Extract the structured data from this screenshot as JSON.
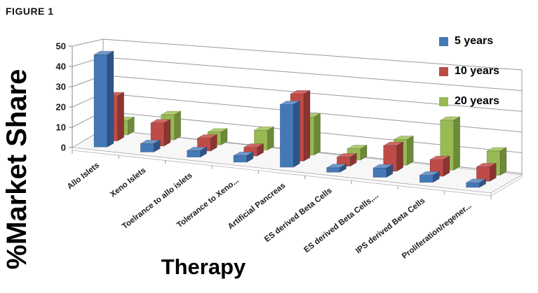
{
  "figure_label": "FIGURE 1",
  "y_axis_title": "%Market Share",
  "x_axis_title": "Therapy",
  "chart_data": {
    "type": "bar",
    "subtype": "3d-clustered-column",
    "title": "",
    "xlabel": "Therapy",
    "ylabel": "%Market Share",
    "ylim": [
      0,
      50
    ],
    "ytick_interval": 10,
    "yticks": [
      "0",
      "10",
      "20",
      "30",
      "40",
      "50"
    ],
    "grid": true,
    "legend_position": "top-right",
    "categories": [
      "Allo Islets",
      "Xeno Islets",
      "Toelrance to allo islets",
      "Tolerance to Xeno...",
      "Artificial Pancreas",
      "ES derived Beta Cells",
      "ES derived Beta Cells,...",
      "IPS derived Beta Cells",
      "Proliferation/regener..."
    ],
    "series": [
      {
        "name": "5 years",
        "color": "#4478B6",
        "side_color": "#2F5385",
        "top_color": "#6E97C9",
        "values": [
          45,
          4,
          3,
          3,
          28,
          2,
          4,
          3,
          2
        ]
      },
      {
        "name": "10 years",
        "color": "#BE4B48",
        "side_color": "#8B3532",
        "top_color": "#CE6764",
        "values": [
          22,
          11,
          6,
          4,
          30,
          4,
          11,
          7,
          6
        ]
      },
      {
        "name": "20 years",
        "color": "#98B954",
        "side_color": "#6C8A38",
        "top_color": "#AECB72",
        "values": [
          7,
          12,
          6,
          9,
          17,
          5,
          11,
          21,
          10
        ]
      }
    ],
    "colors": {
      "gridline": "#999999",
      "axis_text": "#1b1b1b",
      "floor_fill": "#f7f7f7"
    }
  }
}
